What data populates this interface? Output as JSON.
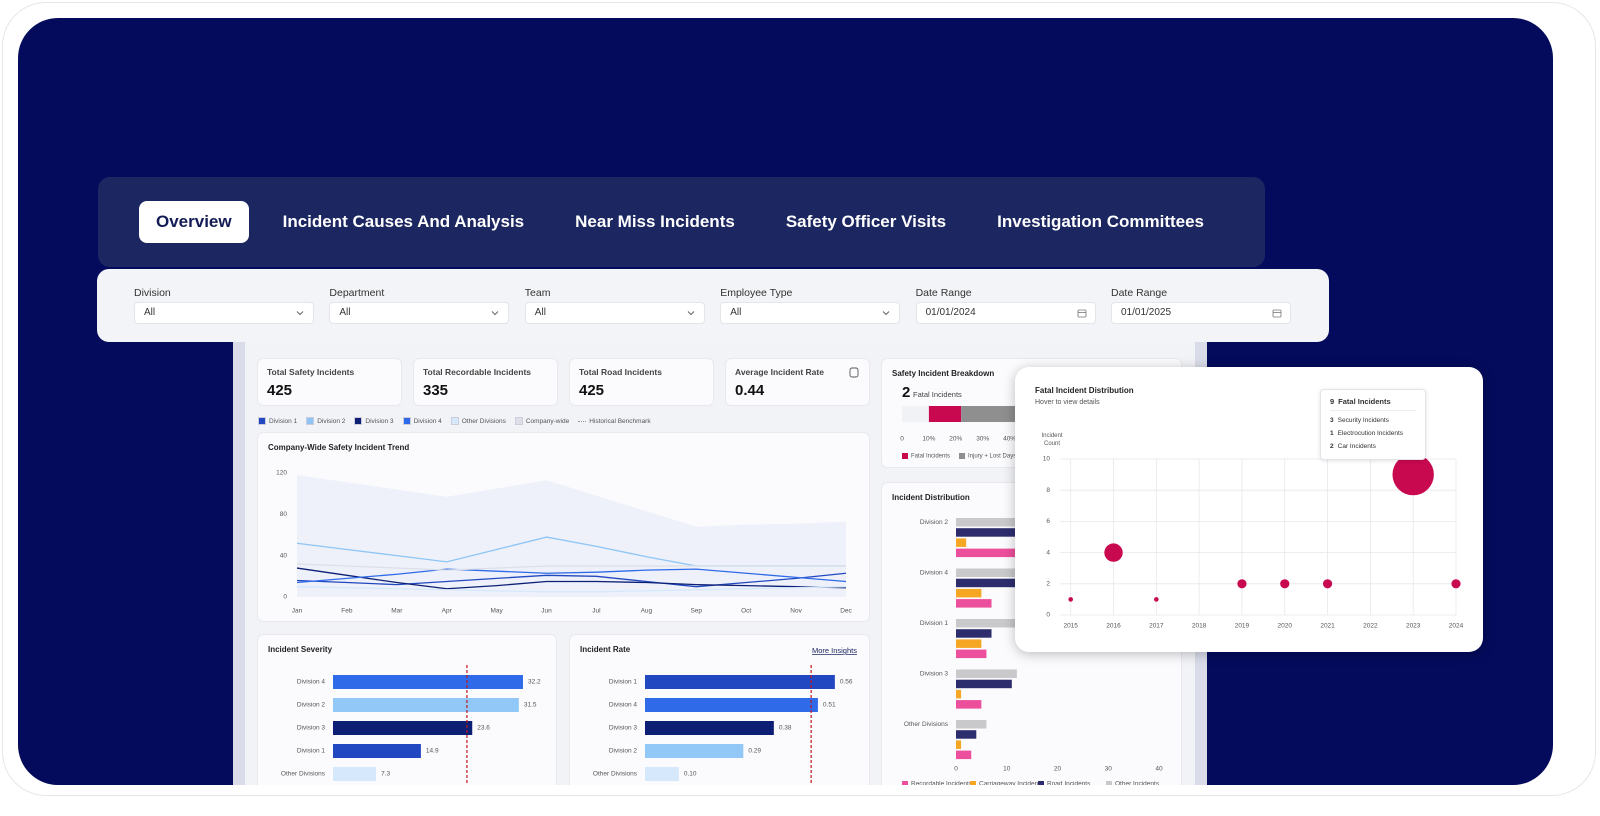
{
  "tabs": [
    "Overview",
    "Incident Causes And Analysis",
    "Near Miss Incidents",
    "Safety Officer Visits",
    "Investigation Committees"
  ],
  "filters": [
    {
      "label": "Division",
      "value": "All"
    },
    {
      "label": "Department",
      "value": "All"
    },
    {
      "label": "Team",
      "value": "All"
    },
    {
      "label": "Employee Type",
      "value": "All"
    },
    {
      "label": "Date Range",
      "value": "01/01/2024"
    },
    {
      "label": "Date Range",
      "value": "01/01/2025"
    }
  ],
  "kpis": [
    {
      "label": "Total Safety Incidents",
      "value": 425
    },
    {
      "label": "Total Recordable Incidents",
      "value": 335
    },
    {
      "label": "Total Road Incidents",
      "value": 425
    },
    {
      "label": "Average Incident Rate",
      "value": 0.44
    }
  ],
  "chart_data": [
    {
      "type": "line",
      "title": "Company-Wide Safety Incident Trend",
      "categories": [
        "Jan",
        "Feb",
        "Mar",
        "Apr",
        "May",
        "Jun",
        "Jul",
        "Aug",
        "Sep",
        "Oct",
        "Nov",
        "Dec"
      ],
      "ylim": [
        0,
        120
      ],
      "yticks": [
        0,
        40,
        80,
        120
      ],
      "legend": true,
      "series": [
        {
          "name": "Division 1",
          "color": "#2148c0",
          "values": [
            16,
            14,
            12,
            15,
            18,
            21,
            20,
            15,
            10,
            14,
            18,
            23
          ]
        },
        {
          "name": "Division 2",
          "color": "#8ec5f5",
          "values": [
            52,
            46,
            40,
            34,
            46,
            58,
            49,
            39,
            30,
            30,
            30,
            30
          ]
        },
        {
          "name": "Division 3",
          "color": "#0c1f74",
          "values": [
            28,
            21,
            14,
            8,
            11,
            15,
            15,
            14,
            12,
            11,
            10,
            9
          ]
        },
        {
          "name": "Division 4",
          "color": "#2f6be8",
          "values": [
            14,
            18,
            22,
            27,
            25,
            23,
            24,
            26,
            27,
            23,
            19,
            15
          ]
        },
        {
          "name": "Other Divisions",
          "color": "#d6e8fc",
          "values": [
            10,
            9,
            8,
            7,
            6,
            5,
            5,
            6,
            7,
            8,
            9,
            10
          ]
        },
        {
          "name": "Company-wide",
          "color": "#dde0e8",
          "values": [
            32,
            30,
            28,
            26,
            28,
            30,
            30,
            30,
            30,
            30,
            30,
            30
          ]
        },
        {
          "name": "Historical Benchmark",
          "color": "#eef1fa",
          "style": "area",
          "values": [
            118,
            111,
            104,
            97,
            105,
            113,
            98,
            83,
            68,
            70,
            71,
            73
          ]
        }
      ]
    },
    {
      "type": "bar",
      "title": "Incident Severity",
      "categories": [
        "Division 4",
        "Division 2",
        "Division 3",
        "Division 1",
        "Other Divisions"
      ],
      "values": [
        32.2,
        31.5,
        23.6,
        14.9,
        7.3
      ],
      "colors": [
        "#2f6be8",
        "#92c8f8",
        "#0c1f74",
        "#2148c0",
        "#d6e8fc"
      ],
      "xlim": [
        0,
        36
      ],
      "reference": 22.7,
      "show_values": true
    },
    {
      "type": "bar",
      "title": "Incident Rate",
      "link": "More Insights",
      "categories": [
        "Division 1",
        "Division 4",
        "Division 3",
        "Division 2",
        "Other Divisions"
      ],
      "values": [
        0.56,
        0.51,
        0.38,
        0.29,
        0.1
      ],
      "value_labels": [
        "0.56",
        "0.51",
        "0.38",
        "0.29",
        "0.10"
      ],
      "colors": [
        "#2148c0",
        "#2f6be8",
        "#0c1f74",
        "#92c8f8",
        "#d6e8fc"
      ],
      "xlim": [
        0,
        0.63
      ],
      "reference": 0.49,
      "show_values": true
    },
    {
      "type": "stacked-bar",
      "title": "Safety Incident Breakdown",
      "headline": {
        "value": 2,
        "label": "Fatal Incidents"
      },
      "xlim": [
        0,
        100
      ],
      "xticks": [
        0,
        {
          "value": 10,
          "label": "10%"
        },
        {
          "value": 20,
          "label": "20%"
        },
        {
          "value": 30,
          "label": "30%"
        },
        {
          "value": 40,
          "label": "40%"
        }
      ],
      "series": [
        {
          "name": null,
          "color": "#f1f2f5",
          "values": [
            10
          ]
        },
        {
          "name": "Fatal Incidents",
          "color": "#c8084f",
          "values": [
            12
          ]
        },
        {
          "name": "Injury + Lost Days",
          "color": "#8f8f8f",
          "values": [
            22
          ]
        }
      ]
    },
    {
      "type": "bar",
      "title": "Incident Distribution",
      "categories": [
        "Division 2",
        "Division 4",
        "Division 1",
        "Division 3",
        "Other Divisions"
      ],
      "xlim": [
        0,
        40
      ],
      "xticks": [
        0,
        10,
        20,
        30,
        40
      ],
      "series": [
        {
          "name": "Recordable Incidents",
          "color": "#ec4f9c",
          "values": [
            12,
            7,
            6,
            5,
            3
          ]
        },
        {
          "name": "Carriageway Incidents",
          "color": "#f5a623",
          "values": [
            2,
            5,
            5,
            1,
            1
          ]
        },
        {
          "name": "Road Incidents",
          "color": "#2d2d6e",
          "values": [
            14,
            12,
            7,
            11,
            4
          ]
        },
        {
          "name": "Other Incidents",
          "color": "#c9c9cc",
          "values": [
            16,
            15,
            14,
            12,
            6
          ]
        }
      ]
    },
    {
      "type": "scatter",
      "title": "Fatal Incident Distribution",
      "subtitle": "Hover to view details",
      "y_label": "Incident Count",
      "color": "#c8084f",
      "grid": true,
      "x": [
        2015,
        2016,
        2017,
        2019,
        2020,
        2021,
        2023,
        2024
      ],
      "values": [
        1,
        4,
        1,
        2,
        2,
        2,
        9,
        2
      ],
      "xlim": [
        2014.75,
        2024
      ],
      "xticks": [
        2015,
        2016,
        2017,
        2018,
        2019,
        2020,
        2021,
        2022,
        2023,
        2024
      ],
      "ylim": [
        0,
        10
      ],
      "yticks": [
        0,
        2,
        4,
        6,
        8,
        10
      ],
      "tooltip": {
        "value": 9,
        "label": "Fatal Incidents",
        "items": [
          {
            "value": 3,
            "label": "Security Incidents"
          },
          {
            "value": 1,
            "label": "Electrocution Incidents"
          },
          {
            "value": 2,
            "label": "Car Incidents"
          }
        ]
      }
    }
  ]
}
